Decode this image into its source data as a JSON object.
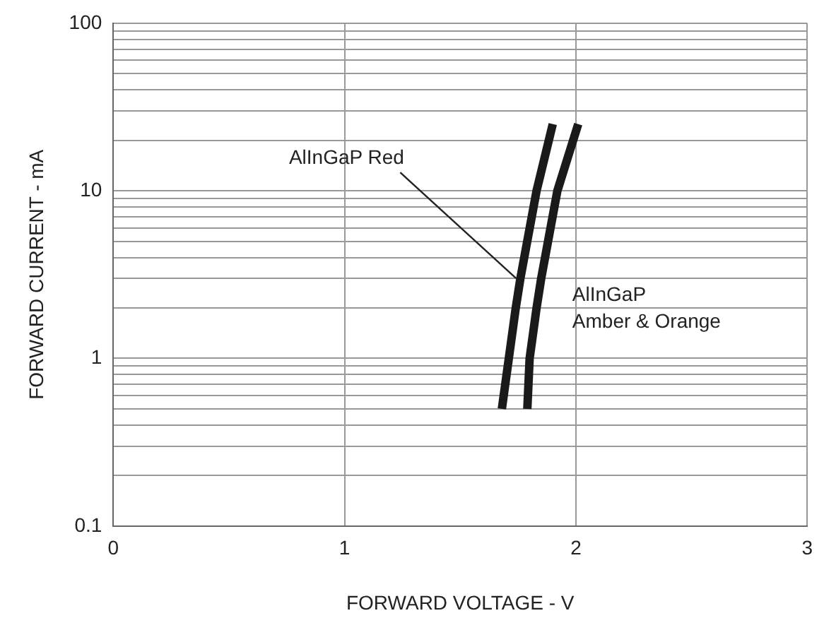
{
  "chart_data": {
    "type": "line",
    "xlabel": "FORWARD VOLTAGE - V",
    "ylabel": "FORWARD CURRENT - mA",
    "log": "y",
    "grid": true,
    "marker": "none",
    "line_style": "solid",
    "legend": false,
    "xlim": [
      0,
      3
    ],
    "xticks": [
      0,
      1,
      2,
      3
    ],
    "ylim": [
      0.1,
      100
    ],
    "yticks": [
      0.1,
      1,
      10,
      100
    ],
    "series": [
      {
        "name": "AlInGaP Red",
        "color": "#1a1a1a",
        "x": [
          1.68,
          1.71,
          1.74,
          1.76,
          1.83,
          1.9
        ],
        "values": [
          0.5,
          1,
          2,
          3,
          10,
          25
        ]
      },
      {
        "name": "AlInGaP Amber & Orange",
        "color": "#1a1a1a",
        "x": [
          1.79,
          1.8,
          1.83,
          1.85,
          1.92,
          2.01
        ],
        "values": [
          0.5,
          1,
          2,
          3,
          10,
          25
        ]
      }
    ]
  }
}
